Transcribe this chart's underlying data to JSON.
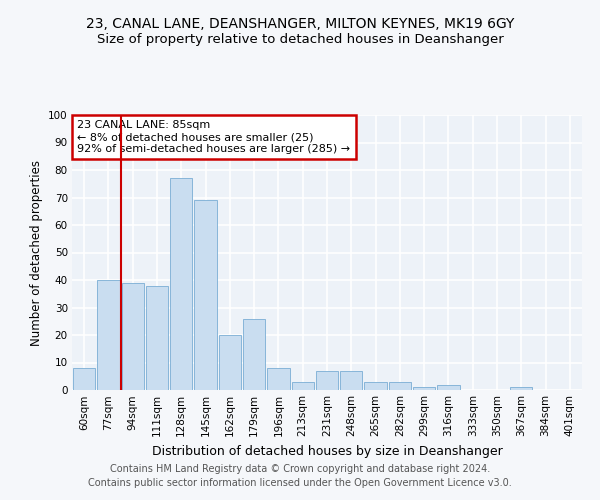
{
  "title1": "23, CANAL LANE, DEANSHANGER, MILTON KEYNES, MK19 6GY",
  "title2": "Size of property relative to detached houses in Deanshanger",
  "xlabel": "Distribution of detached houses by size in Deanshanger",
  "ylabel": "Number of detached properties",
  "categories": [
    "60sqm",
    "77sqm",
    "94sqm",
    "111sqm",
    "128sqm",
    "145sqm",
    "162sqm",
    "179sqm",
    "196sqm",
    "213sqm",
    "231sqm",
    "248sqm",
    "265sqm",
    "282sqm",
    "299sqm",
    "316sqm",
    "333sqm",
    "350sqm",
    "367sqm",
    "384sqm",
    "401sqm"
  ],
  "values": [
    8,
    40,
    39,
    38,
    77,
    69,
    20,
    26,
    8,
    3,
    7,
    7,
    3,
    3,
    1,
    2,
    0,
    0,
    1,
    0,
    0
  ],
  "bar_color": "#c9ddf0",
  "bar_edge_color": "#7aadd4",
  "vline_x": 1.5,
  "vline_color": "#cc0000",
  "annotation_text": "23 CANAL LANE: 85sqm\n← 8% of detached houses are smaller (25)\n92% of semi-detached houses are larger (285) →",
  "annotation_box_color": "#ffffff",
  "annotation_box_edge": "#cc0000",
  "ylim": [
    0,
    100
  ],
  "yticks": [
    0,
    10,
    20,
    30,
    40,
    50,
    60,
    70,
    80,
    90,
    100
  ],
  "footer1": "Contains HM Land Registry data © Crown copyright and database right 2024.",
  "footer2": "Contains public sector information licensed under the Open Government Licence v3.0.",
  "bg_color": "#f5f7fa",
  "plot_bg_color": "#edf2f8",
  "grid_color": "#ffffff",
  "title1_fontsize": 10,
  "title2_fontsize": 9.5,
  "xlabel_fontsize": 9,
  "ylabel_fontsize": 8.5,
  "tick_fontsize": 7.5,
  "annot_fontsize": 8,
  "footer_fontsize": 7
}
